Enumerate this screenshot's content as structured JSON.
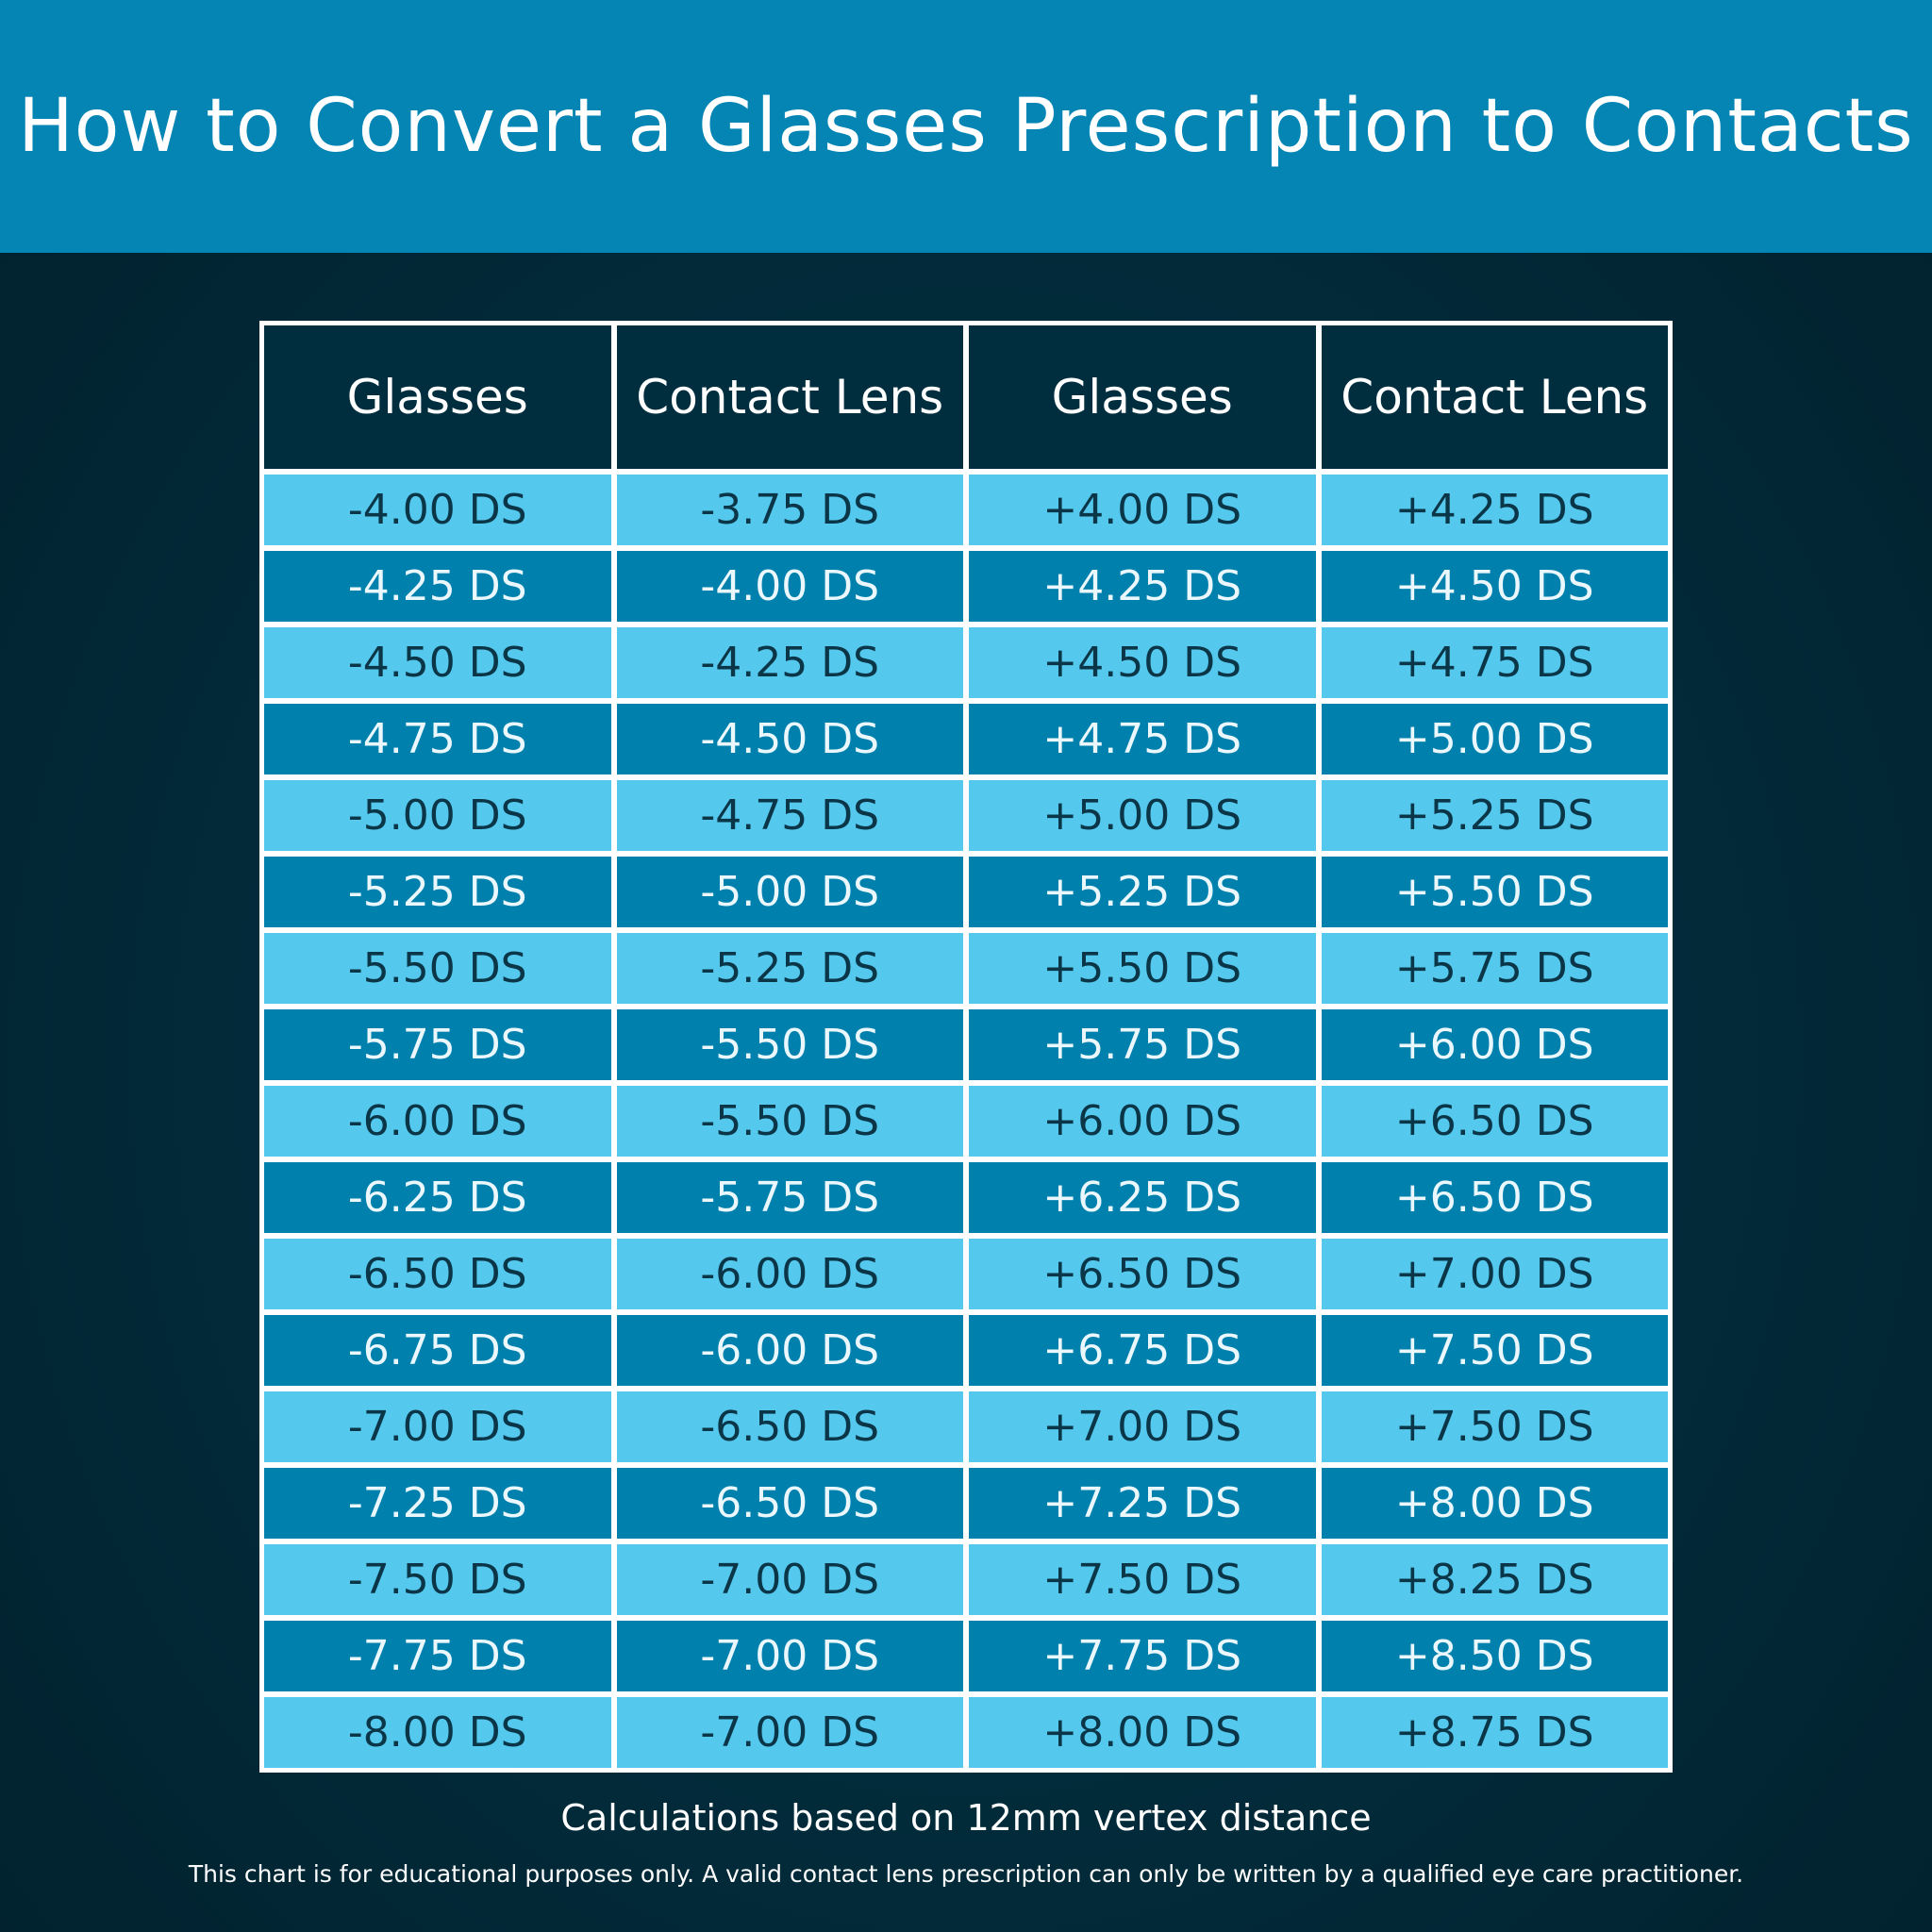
{
  "title": "How to Convert a Glasses Prescription to Contacts",
  "headers": [
    "Glasses",
    "Contact Lens",
    "Glasses",
    "Contact Lens"
  ],
  "rows": [
    [
      "-4.00 DS",
      "-3.75 DS",
      "+4.00 DS",
      "+4.25 DS"
    ],
    [
      "-4.25 DS",
      "-4.00 DS",
      "+4.25 DS",
      "+4.50 DS"
    ],
    [
      "-4.50 DS",
      "-4.25 DS",
      "+4.50 DS",
      "+4.75 DS"
    ],
    [
      "-4.75 DS",
      "-4.50 DS",
      "+4.75 DS",
      "+5.00 DS"
    ],
    [
      "-5.00 DS",
      "-4.75 DS",
      "+5.00 DS",
      "+5.25 DS"
    ],
    [
      "-5.25 DS",
      "-5.00 DS",
      "+5.25 DS",
      "+5.50 DS"
    ],
    [
      "-5.50 DS",
      "-5.25 DS",
      "+5.50 DS",
      "+5.75 DS"
    ],
    [
      "-5.75 DS",
      "-5.50 DS",
      "+5.75 DS",
      "+6.00 DS"
    ],
    [
      "-6.00 DS",
      "-5.50 DS",
      "+6.00 DS",
      "+6.50 DS"
    ],
    [
      "-6.25 DS",
      "-5.75 DS",
      "+6.25 DS",
      "+6.50 DS"
    ],
    [
      "-6.50 DS",
      "-6.00 DS",
      "+6.50 DS",
      "+7.00 DS"
    ],
    [
      "-6.75 DS",
      "-6.00 DS",
      "+6.75 DS",
      "+7.50 DS"
    ],
    [
      "-7.00 DS",
      "-6.50 DS",
      "+7.00 DS",
      "+7.50 DS"
    ],
    [
      "-7.25 DS",
      "-6.50 DS",
      "+7.25 DS",
      "+8.00 DS"
    ],
    [
      "-7.50 DS",
      "-7.00 DS",
      "+7.50 DS",
      "+8.25 DS"
    ],
    [
      "-7.75 DS",
      "-7.00 DS",
      "+7.75 DS",
      "+8.50 DS"
    ],
    [
      "-8.00 DS",
      "-7.00 DS",
      "+8.00 DS",
      "+8.75 DS"
    ]
  ],
  "caption": "Calculations based on 12mm vertex distance",
  "disclaimer": "This chart is for educational purposes only. A valid contact lens prescription can only be written by a qualified eye care practitioner.",
  "colors": {
    "header_bar": "#0485b4",
    "table_header": "#002e3e",
    "row_light": "#55c8ee",
    "row_dark": "#0080ac"
  }
}
